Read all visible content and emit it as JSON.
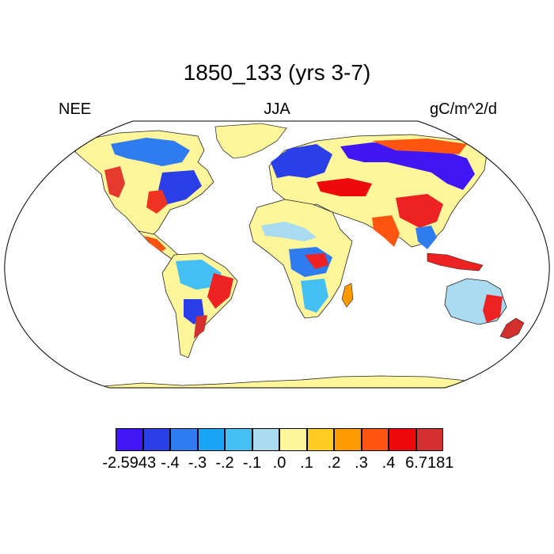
{
  "title": "1850_133 (yrs 3-7)",
  "left_label": "NEE",
  "center_label": "JJA",
  "right_label": "gC/m^2/d",
  "colorbar": {
    "colors": [
      "#4016f5",
      "#2a3fe8",
      "#2f7bf0",
      "#19a4f5",
      "#45c0f4",
      "#a8daf0",
      "#fff59b",
      "#ffcc22",
      "#ff9900",
      "#ff5511",
      "#ee0a0a",
      "#d42f2f"
    ],
    "labels": [
      "-2.5943",
      "-.4",
      "-.3",
      "-.2",
      "-.1",
      ".0",
      ".1",
      ".2",
      ".3",
      ".4",
      "6.7181"
    ]
  },
  "map": {
    "projection": "Robinson",
    "ocean_color": "#ffffff",
    "frame_color": "#000000"
  }
}
